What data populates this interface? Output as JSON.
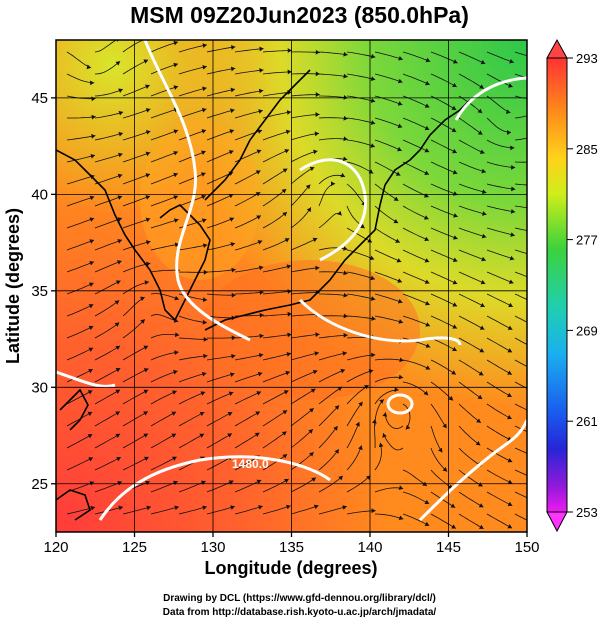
{
  "title": "MSM 09Z20Jun2023 (850.0hPa)",
  "map": {
    "x_label": "Longitude (degrees)",
    "y_label": "Latitude  (degrees)",
    "lon_range": [
      120,
      150
    ],
    "lat_range": [
      22.5,
      48
    ],
    "x_ticks": [
      "120",
      "125",
      "130",
      "135",
      "140",
      "145",
      "150"
    ],
    "y_ticks": [
      "25",
      "30",
      "35",
      "40",
      "45"
    ],
    "contour_label": "1480.0",
    "colors": {
      "warm": "#ff3a3a",
      "orange": "#ff8a1e",
      "yellow": "#e6e61a",
      "green": "#3ccf3c",
      "contour": "#ffffff",
      "streamline": "#111111"
    }
  },
  "colorbar": {
    "labels": [
      "293",
      "285",
      "277",
      "269",
      "261",
      "253"
    ],
    "max": 293,
    "min": 253,
    "colors": [
      "#ff3333",
      "#ff8c1a",
      "#ffd21a",
      "#cfee1a",
      "#3cd23c",
      "#1fcfb0",
      "#1ab0ee",
      "#1a5cee",
      "#2626d8",
      "#8c1ad8",
      "#ee1aee"
    ]
  },
  "footer": {
    "line1": "Drawing by DCL (https://www.gfd-dennou.org/library/dcl/)",
    "line2": "Data from http://database.rish.kyoto-u.ac.jp/arch/jmadata/"
  }
}
